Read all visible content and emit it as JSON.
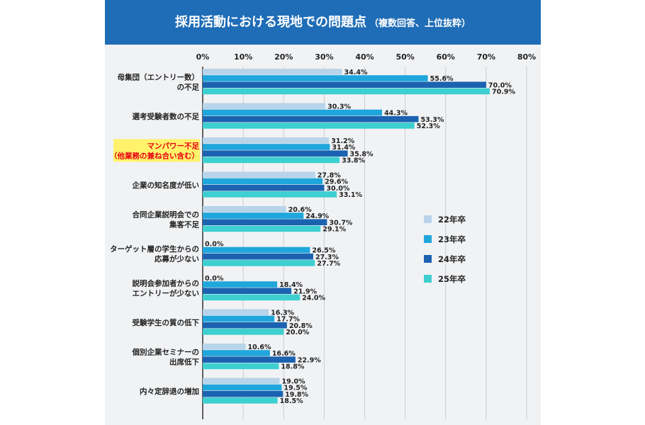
{
  "title": {
    "main": "採用活動における現地での問題点",
    "sub": "（複数回答、上位抜粋）"
  },
  "colors": {
    "title_bar": "#1f6db7",
    "highlight_box": "#fff36b",
    "highlight_text": "#e60012"
  },
  "chart_data": {
    "type": "bar",
    "orientation": "horizontal",
    "xlim": [
      0,
      80
    ],
    "x_ticks": [
      "0%",
      "10%",
      "20%",
      "30%",
      "40%",
      "50%",
      "60%",
      "70%",
      "80%"
    ],
    "grid": true,
    "legend_position": "right",
    "categories": [
      [
        "母集団（エントリー数）",
        "の不足"
      ],
      [
        "選考受験者数の不足"
      ],
      [
        "マンパワー不足",
        "（他業務の兼ね合い含む）"
      ],
      [
        "企業の知名度が低い"
      ],
      [
        "合同企業説明会での",
        "集客不足"
      ],
      [
        "ターゲット層の学生からの",
        "応募が少ない"
      ],
      [
        "説明会参加者からの",
        "エントリーが少ない"
      ],
      [
        "受験学生の質の低下"
      ],
      [
        "個別企業セミナーの",
        "出席低下"
      ],
      [
        "内々定辞退の増加"
      ]
    ],
    "highlighted_category_index": 2,
    "series": [
      {
        "name": "22年卒",
        "color": "#b8d4ea",
        "values": [
          34.4,
          30.3,
          31.2,
          27.8,
          20.6,
          0.0,
          0.0,
          16.3,
          10.6,
          19.0
        ]
      },
      {
        "name": "23年卒",
        "color": "#1fa6dc",
        "values": [
          55.6,
          44.3,
          31.4,
          29.6,
          24.9,
          26.5,
          18.4,
          17.7,
          16.6,
          19.5
        ]
      },
      {
        "name": "24年卒",
        "color": "#1b63b0",
        "values": [
          70.0,
          53.3,
          35.8,
          30.0,
          30.7,
          27.3,
          21.9,
          20.8,
          22.9,
          19.8
        ]
      },
      {
        "name": "25年卒",
        "color": "#3ecfd0",
        "values": [
          70.9,
          52.3,
          33.8,
          33.1,
          29.1,
          27.7,
          24.0,
          20.0,
          18.8,
          18.5
        ]
      }
    ]
  }
}
